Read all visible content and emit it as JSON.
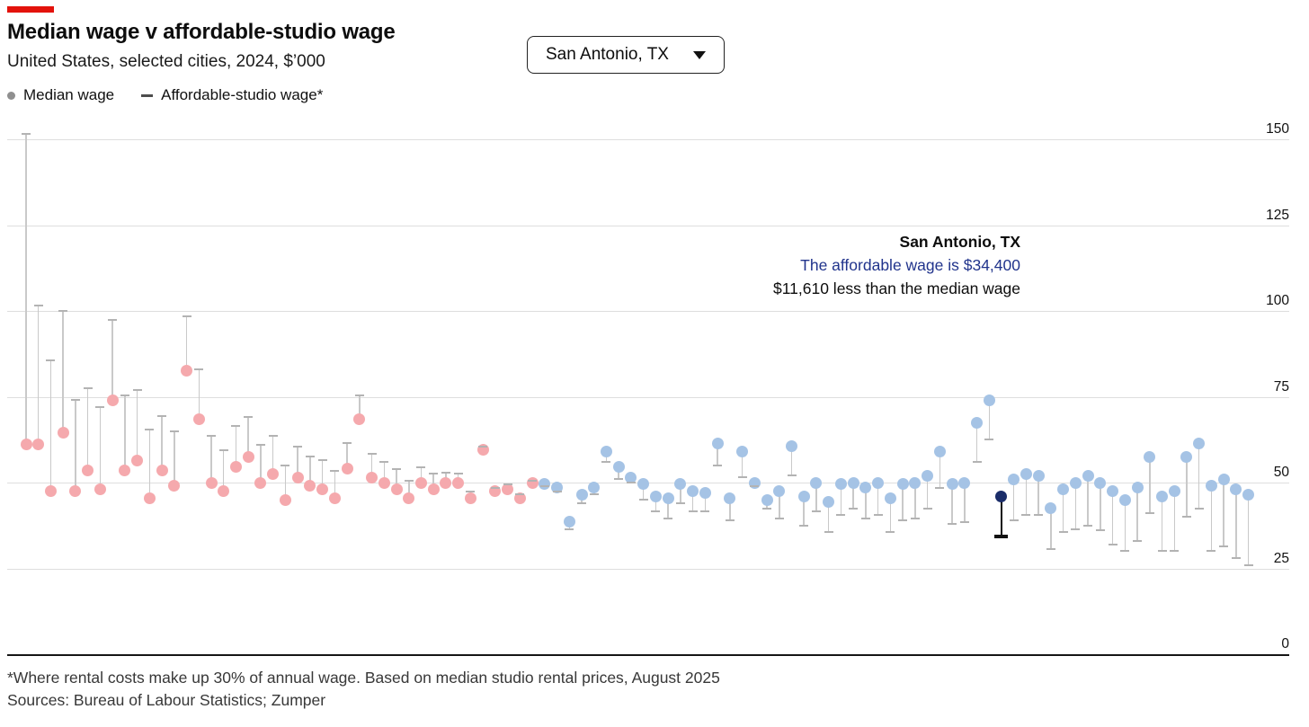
{
  "header": {
    "title": "Median wage v affordable-studio wage",
    "subtitle": "United States, selected cities, 2024, $’000",
    "legend": [
      {
        "label": "Median wage",
        "marker": "dot"
      },
      {
        "label": "Affordable-studio wage*",
        "marker": "dash"
      }
    ]
  },
  "dropdown": {
    "value": "San Antonio, TX"
  },
  "annotation": {
    "city": "San Antonio, TX",
    "line1": "The affordable wage is $34,400",
    "line2": "$11,610 less than the median wage"
  },
  "footer": {
    "footnote": "*Where rental costs make up 30% of annual wage. Based on median studio rental prices, August 2025",
    "sources": "Sources: Bureau of Labour Statistics; Zumper"
  },
  "colors": {
    "accent_red": "#e3120b",
    "pink_dot": "#f5a9ad",
    "blue_dot": "#a5c3e5",
    "navy_dot": "#1b2d69",
    "stem": "#c9c9c9",
    "highlight_stem": "#111111",
    "dash": "#b3b3b3",
    "highlight_dash": "#111111",
    "gridline": "#dedede",
    "baseline": "#161616",
    "annotation_blue": "#21348c"
  },
  "chart_data": {
    "type": "scatter",
    "subtype": "dumbbell-lollipop",
    "title": "Median wage v affordable-studio wage",
    "subtitle": "United States, selected cities, 2024, $’000",
    "unit": "$’000",
    "ylim": [
      0,
      150
    ],
    "y_ticks": [
      150,
      125,
      100,
      75,
      50,
      25,
      0
    ],
    "grid": "horizontal",
    "axis_side": "right",
    "legend_position": "top-left",
    "n_cities": 100,
    "highlight_index": 79,
    "highlight_city": "San Antonio, TX",
    "highlight_values": {
      "affordable_wage_usd": 34400,
      "median_wage_usd": 46010,
      "difference_usd": 11610
    },
    "series": [
      {
        "name": "Median wage",
        "marker": "dot",
        "values": [
          61,
          61,
          47.5,
          64.5,
          47.5,
          53.5,
          48,
          74,
          53.5,
          56.5,
          45.5,
          53.5,
          49,
          82.5,
          68.5,
          50,
          47.5,
          54.5,
          57.5,
          50,
          52.5,
          45,
          51.5,
          49,
          48,
          45.5,
          54,
          68.5,
          51.5,
          50,
          48,
          45.5,
          50,
          48,
          50,
          50,
          45.5,
          59.5,
          47.5,
          48,
          45.5,
          50,
          49.5,
          48.5,
          38.5,
          46.5,
          48.5,
          59,
          54.5,
          51.5,
          49.5,
          46,
          45.5,
          49.5,
          47.5,
          47,
          61.5,
          45.5,
          59,
          50,
          45,
          47.5,
          60.5,
          46,
          50,
          44.5,
          49.5,
          50,
          48.5,
          50,
          45.5,
          49.5,
          50,
          52,
          59,
          49.5,
          50,
          67.5,
          74,
          46,
          51,
          52.5,
          52,
          42.5,
          48,
          50,
          52,
          50,
          47.5,
          45,
          48.5,
          57.5,
          46,
          47.5,
          57.5,
          61.5,
          49,
          51,
          48,
          46.5
        ]
      },
      {
        "name": "Affordable-studio wage*",
        "marker": "dash",
        "values": [
          151.5,
          101.5,
          85.5,
          100,
          74,
          77.5,
          72,
          97.5,
          75.5,
          77,
          65.5,
          69.5,
          65,
          98.5,
          83,
          63.5,
          59.5,
          66.5,
          69,
          61,
          63.5,
          55,
          60.5,
          57.5,
          56.5,
          53.5,
          61.5,
          75.5,
          58.5,
          56,
          54,
          50.5,
          54.5,
          52.5,
          53,
          52.5,
          47.5,
          60.5,
          48.5,
          49.5,
          46.5,
          50.5,
          49,
          47.5,
          36.5,
          44,
          46.5,
          56,
          51,
          50,
          45,
          41.5,
          39.5,
          44,
          41.5,
          41.5,
          55,
          39,
          51.5,
          49,
          42.5,
          39.5,
          52,
          37.5,
          41.5,
          35.5,
          40.5,
          42.5,
          39.5,
          40.5,
          35.5,
          39,
          39.5,
          42.5,
          48.5,
          38,
          38.5,
          56,
          62.5,
          34.4,
          39,
          40.5,
          40.5,
          30.5,
          35.5,
          36.5,
          37.5,
          36,
          32,
          30,
          33,
          41,
          30,
          30,
          40,
          42.5,
          30,
          31.5,
          28,
          26
        ]
      }
    ]
  }
}
